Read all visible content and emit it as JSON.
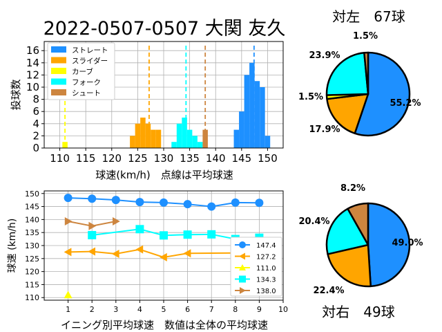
{
  "figure_title": "2022-0507-0507 大関 友久",
  "chart_data": [
    {
      "type": "bar",
      "xlabel": "球速(km/h)　点線は平均球速",
      "ylabel": "投球数",
      "xlim": [
        107,
        153
      ],
      "ylim": [
        0,
        17.5
      ],
      "x_ticks": [
        110,
        115,
        120,
        125,
        130,
        135,
        140,
        145,
        150
      ],
      "y_ticks": [
        0,
        2,
        4,
        6,
        8,
        10,
        12,
        14,
        16
      ],
      "grid": true,
      "legend_position": "top-left",
      "series": [
        {
          "name": "ストレート",
          "color": "#1e90ff",
          "mean": 147.4,
          "speeds": [
            144,
            145,
            146,
            147,
            148,
            149,
            150
          ],
          "counts": [
            3,
            6,
            12,
            14,
            11,
            10,
            2
          ]
        },
        {
          "name": "スライダー",
          "color": "#ffa500",
          "mean": 127.2,
          "speeds": [
            124,
            125,
            126,
            127,
            128,
            129
          ],
          "counts": [
            2,
            4,
            5,
            4,
            3,
            3
          ]
        },
        {
          "name": "カーブ",
          "color": "#ffff00",
          "mean": 111.0,
          "speeds": [
            111
          ],
          "counts": [
            1
          ]
        },
        {
          "name": "フォーク",
          "color": "#00ffff",
          "mean": 134.3,
          "speeds": [
            132,
            133,
            134,
            135,
            136,
            137
          ],
          "counts": [
            1,
            4,
            5,
            3,
            2,
            1
          ]
        },
        {
          "name": "シュート",
          "color": "#cd853f",
          "mean": 138.0,
          "speeds": [
            138
          ],
          "counts": [
            3
          ]
        }
      ]
    },
    {
      "type": "line",
      "xlabel": "イニング別平均球速　数値は全体の平均球速",
      "ylabel": "球速 (km/h)",
      "xlim": [
        0,
        10
      ],
      "ylim": [
        109,
        151
      ],
      "x_ticks": [
        1,
        2,
        3,
        4,
        5,
        6,
        7,
        8,
        9,
        10
      ],
      "y_ticks": [
        110,
        115,
        120,
        125,
        130,
        135,
        140,
        145,
        150
      ],
      "grid": true,
      "legend_position": "lower-right",
      "series": [
        {
          "name": "147.4",
          "color": "#1e90ff",
          "marker": "circle",
          "x": [
            1,
            2,
            3,
            4,
            5,
            6,
            7,
            8,
            9
          ],
          "y": [
            148.3,
            148.0,
            147.5,
            146.7,
            146.5,
            145.9,
            145.0,
            146.5,
            146.4
          ]
        },
        {
          "name": "127.2",
          "color": "#ffa500",
          "marker": "triangle-left",
          "x": [
            1,
            2,
            3,
            4,
            5,
            6,
            9
          ],
          "y": [
            127.5,
            127.7,
            126.8,
            128.5,
            125.5,
            127.0,
            127.2
          ]
        },
        {
          "name": "111.0",
          "color": "#ffff00",
          "marker": "triangle-up",
          "x": [
            1
          ],
          "y": [
            111.0
          ]
        },
        {
          "name": "134.3",
          "color": "#00ffff",
          "marker": "square",
          "x": [
            2,
            4,
            5,
            6,
            7,
            8,
            9
          ],
          "y": [
            134.0,
            136.3,
            133.9,
            134.2,
            134.3,
            132.5,
            133.0
          ]
        },
        {
          "name": "138.0",
          "color": "#cd853f",
          "marker": "triangle-right",
          "x": [
            1,
            2,
            3
          ],
          "y": [
            139.3,
            137.5,
            139.3
          ]
        }
      ]
    },
    {
      "type": "pie",
      "title": "対左　67球",
      "labels": [
        "55.2%",
        "17.9%",
        "1.5%",
        "23.9%",
        "1.5%"
      ],
      "values": [
        55.2,
        17.9,
        1.5,
        23.9,
        1.5
      ],
      "colors": [
        "#1e90ff",
        "#ffa500",
        "#ffff00",
        "#00ffff",
        "#cd853f"
      ]
    },
    {
      "type": "pie",
      "title": "対右　49球",
      "labels": [
        "49.0%",
        "22.4%",
        "20.4%",
        "8.2%"
      ],
      "values": [
        49.0,
        22.4,
        20.4,
        8.2
      ],
      "colors": [
        "#1e90ff",
        "#ffa500",
        "#00ffff",
        "#cd853f"
      ]
    }
  ]
}
